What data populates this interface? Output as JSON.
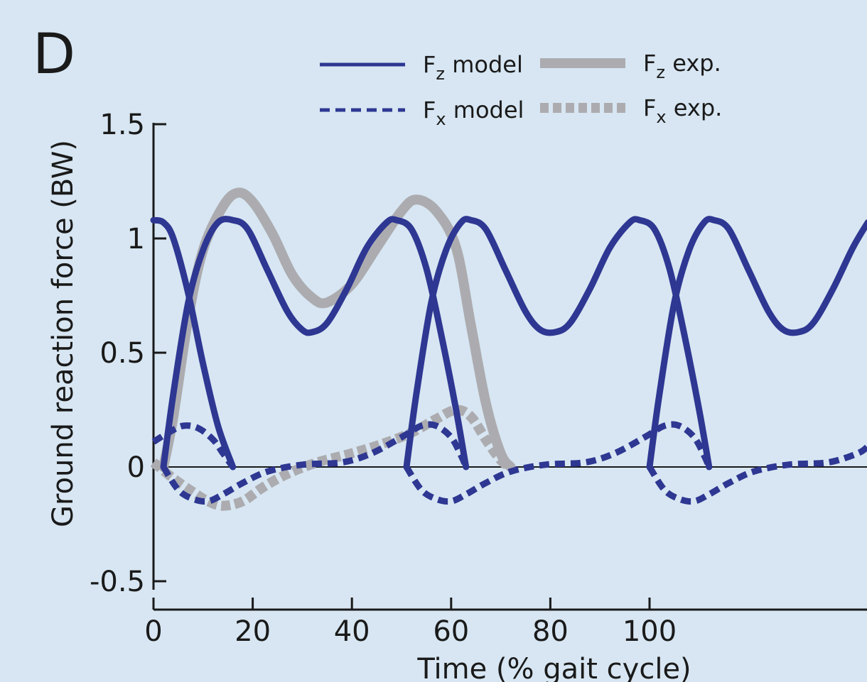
{
  "panel_label": "D",
  "colors": {
    "model": "#2e3792",
    "experiment": "#acacb0",
    "axis": "#1a1a1a",
    "background": "#d7e6f2"
  },
  "legend": [
    {
      "base": "F",
      "sub": "z",
      "text": " model",
      "style": "solid",
      "source": "model"
    },
    {
      "base": "F",
      "sub": "z",
      "text": " exp.",
      "style": "solid",
      "source": "experiment"
    },
    {
      "base": "F",
      "sub": "x",
      "text": " model",
      "style": "dashed",
      "source": "model"
    },
    {
      "base": "F",
      "sub": "x",
      "text": " exp.",
      "style": "dashed",
      "source": "experiment"
    }
  ],
  "chart_data": {
    "type": "line",
    "xlabel": "Time (% gait cycle)",
    "ylabel": "Ground reaction force (BW)",
    "xlim": [
      0,
      144
    ],
    "ylim": [
      -0.5,
      1.5
    ],
    "xticks": [
      0,
      20,
      40,
      60,
      80,
      100
    ],
    "yticks": [
      1.5,
      1,
      0.5,
      0,
      -0.5
    ],
    "ytick_labels": [
      "1.5",
      "1",
      "0.5",
      "0",
      "-0.5"
    ],
    "zero_line": true,
    "grid": false,
    "series": [
      {
        "name": "Fz exp.",
        "style": "solid",
        "source": "experiment",
        "points": [
          [
            2,
            0
          ],
          [
            4,
            0.22
          ],
          [
            7,
            0.65
          ],
          [
            10,
            0.95
          ],
          [
            14,
            1.14
          ],
          [
            17,
            1.2
          ],
          [
            20,
            1.16
          ],
          [
            24,
            1.02
          ],
          [
            28,
            0.84
          ],
          [
            32,
            0.74
          ],
          [
            35,
            0.72
          ],
          [
            40,
            0.8
          ],
          [
            45,
            0.96
          ],
          [
            50,
            1.12
          ],
          [
            53,
            1.17
          ],
          [
            57,
            1.12
          ],
          [
            61,
            0.96
          ],
          [
            64,
            0.62
          ],
          [
            67,
            0.28
          ],
          [
            70,
            0.06
          ],
          [
            72,
            0
          ]
        ]
      },
      {
        "name": "Fx exp.",
        "style": "dashed",
        "source": "experiment",
        "points": [
          [
            0,
            0.02
          ],
          [
            4,
            -0.05
          ],
          [
            8,
            -0.11
          ],
          [
            11,
            -0.15
          ],
          [
            14,
            -0.17
          ],
          [
            18,
            -0.15
          ],
          [
            22,
            -0.09
          ],
          [
            27,
            -0.03
          ],
          [
            33,
            0.02
          ],
          [
            40,
            0.06
          ],
          [
            46,
            0.1
          ],
          [
            52,
            0.15
          ],
          [
            57,
            0.21
          ],
          [
            61,
            0.25
          ],
          [
            64,
            0.22
          ],
          [
            67,
            0.12
          ],
          [
            70,
            0.03
          ],
          [
            72,
            0
          ]
        ]
      },
      {
        "name": "Fz model",
        "style": "solid",
        "source": "model",
        "points": [
          [
            0,
            1.08
          ],
          [
            2,
            1.07
          ],
          [
            4,
            1.0
          ],
          [
            7,
            0.76
          ],
          [
            10,
            0.45
          ],
          [
            13,
            0.18
          ],
          [
            16,
            0
          ]
        ]
      },
      {
        "name": "Fz model",
        "style": "solid",
        "source": "model",
        "points": [
          [
            2,
            0
          ],
          [
            4,
            0.32
          ],
          [
            7,
            0.72
          ],
          [
            10,
            0.95
          ],
          [
            13,
            1.07
          ],
          [
            16,
            1.08
          ],
          [
            19,
            1.04
          ],
          [
            23,
            0.86
          ],
          [
            27,
            0.68
          ],
          [
            30,
            0.6
          ],
          [
            32,
            0.59
          ],
          [
            35,
            0.63
          ],
          [
            39,
            0.78
          ],
          [
            43,
            0.96
          ],
          [
            47,
            1.07
          ],
          [
            49,
            1.08
          ],
          [
            52,
            1.04
          ],
          [
            55,
            0.87
          ],
          [
            58,
            0.58
          ],
          [
            61,
            0.25
          ],
          [
            63,
            0
          ]
        ]
      },
      {
        "name": "Fz model",
        "style": "solid",
        "source": "model",
        "points": [
          [
            51,
            0
          ],
          [
            53,
            0.32
          ],
          [
            56,
            0.72
          ],
          [
            59,
            0.95
          ],
          [
            62,
            1.07
          ],
          [
            64,
            1.08
          ],
          [
            67,
            1.04
          ],
          [
            71,
            0.86
          ],
          [
            75,
            0.68
          ],
          [
            78,
            0.6
          ],
          [
            81,
            0.59
          ],
          [
            84,
            0.63
          ],
          [
            88,
            0.78
          ],
          [
            92,
            0.96
          ],
          [
            96,
            1.07
          ],
          [
            98,
            1.08
          ],
          [
            101,
            1.04
          ],
          [
            104,
            0.87
          ],
          [
            107,
            0.58
          ],
          [
            110,
            0.25
          ],
          [
            112,
            0
          ]
        ]
      },
      {
        "name": "Fz model",
        "style": "solid",
        "source": "model",
        "points": [
          [
            100,
            0
          ],
          [
            102,
            0.32
          ],
          [
            105,
            0.72
          ],
          [
            108,
            0.95
          ],
          [
            111,
            1.07
          ],
          [
            113,
            1.08
          ],
          [
            116,
            1.04
          ],
          [
            120,
            0.86
          ],
          [
            124,
            0.68
          ],
          [
            127,
            0.6
          ],
          [
            130,
            0.59
          ],
          [
            133,
            0.63
          ],
          [
            137,
            0.78
          ],
          [
            141,
            0.96
          ],
          [
            144,
            1.07
          ]
        ]
      },
      {
        "name": "Fx model",
        "style": "dashed",
        "source": "model",
        "points": [
          [
            0,
            0.11
          ],
          [
            3,
            0.15
          ],
          [
            6,
            0.18
          ],
          [
            9,
            0.17
          ],
          [
            12,
            0.12
          ],
          [
            14,
            0.06
          ],
          [
            16,
            0
          ]
        ]
      },
      {
        "name": "Fx model",
        "style": "dashed",
        "source": "model",
        "points": [
          [
            2,
            0
          ],
          [
            5,
            -0.1
          ],
          [
            8,
            -0.14
          ],
          [
            11,
            -0.15
          ],
          [
            14,
            -0.12
          ],
          [
            18,
            -0.07
          ],
          [
            23,
            -0.02
          ],
          [
            30,
            0.01
          ],
          [
            38,
            0.02
          ],
          [
            44,
            0.06
          ],
          [
            50,
            0.13
          ],
          [
            54,
            0.18
          ],
          [
            57,
            0.18
          ],
          [
            60,
            0.13
          ],
          [
            62,
            0.05
          ],
          [
            63,
            0
          ]
        ]
      },
      {
        "name": "Fx model",
        "style": "dashed",
        "source": "model",
        "points": [
          [
            51,
            0
          ],
          [
            54,
            -0.1
          ],
          [
            57,
            -0.14
          ],
          [
            60,
            -0.15
          ],
          [
            63,
            -0.12
          ],
          [
            67,
            -0.07
          ],
          [
            72,
            -0.02
          ],
          [
            79,
            0.01
          ],
          [
            87,
            0.02
          ],
          [
            93,
            0.06
          ],
          [
            99,
            0.13
          ],
          [
            103,
            0.18
          ],
          [
            106,
            0.18
          ],
          [
            109,
            0.13
          ],
          [
            111,
            0.05
          ],
          [
            112,
            0
          ]
        ]
      },
      {
        "name": "Fx model",
        "style": "dashed",
        "source": "model",
        "points": [
          [
            100,
            0
          ],
          [
            103,
            -0.1
          ],
          [
            106,
            -0.14
          ],
          [
            109,
            -0.15
          ],
          [
            112,
            -0.12
          ],
          [
            116,
            -0.07
          ],
          [
            121,
            -0.02
          ],
          [
            128,
            0.01
          ],
          [
            136,
            0.02
          ],
          [
            142,
            0.06
          ],
          [
            144,
            0.09
          ]
        ]
      }
    ]
  }
}
